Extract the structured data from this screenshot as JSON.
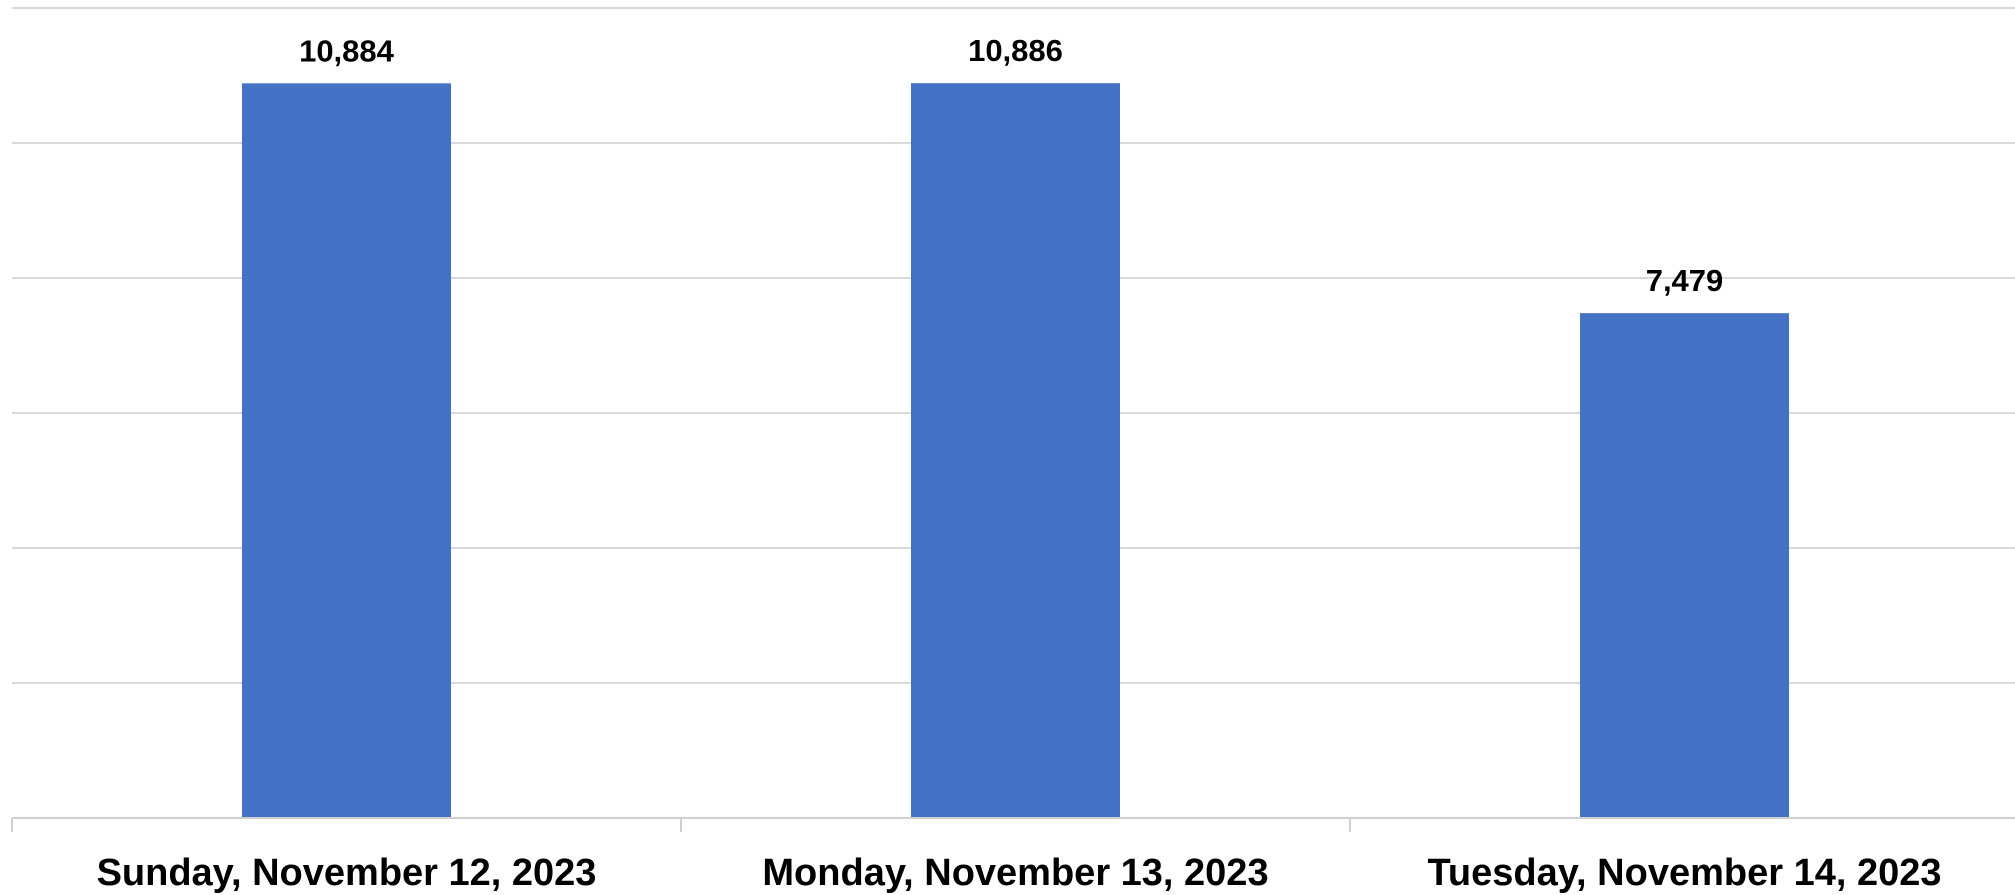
{
  "chart_data": {
    "type": "bar",
    "categories": [
      "Sunday, November 12, 2023",
      "Monday, November 13, 2023",
      "Tuesday, November 14, 2023"
    ],
    "values": [
      10884,
      10886,
      7479
    ],
    "data_labels": [
      "10,884",
      "10,886",
      "7,479"
    ],
    "title": "",
    "xlabel": "",
    "ylabel": "",
    "ylim": [
      0,
      12000
    ],
    "y_gridline_step": 2000,
    "grid": true,
    "y_tick_labels_shown": false,
    "legend": "none",
    "bar_color": "#4472C4"
  }
}
